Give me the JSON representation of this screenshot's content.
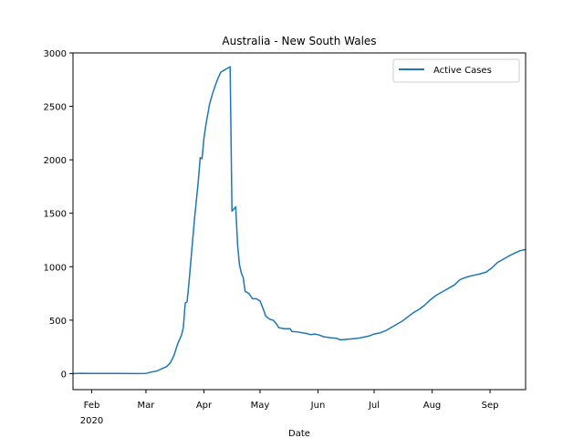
{
  "chart_data": {
    "type": "line",
    "title": "Australia - New South Wales",
    "xlabel": "Date",
    "ylabel": "",
    "xlim": [
      "2020-01-22",
      "2020-09-20"
    ],
    "ylim": [
      -150,
      3000
    ],
    "grid": false,
    "legend_position": "upper right",
    "line_color": "#1f77b4",
    "x_ticks": [
      {
        "date": "2020-02-01",
        "label": "Feb",
        "sublabel": "2020"
      },
      {
        "date": "2020-03-01",
        "label": "Mar",
        "sublabel": ""
      },
      {
        "date": "2020-04-01",
        "label": "Apr",
        "sublabel": ""
      },
      {
        "date": "2020-05-01",
        "label": "May",
        "sublabel": ""
      },
      {
        "date": "2020-06-01",
        "label": "Jun",
        "sublabel": ""
      },
      {
        "date": "2020-07-01",
        "label": "Jul",
        "sublabel": ""
      },
      {
        "date": "2020-08-01",
        "label": "Aug",
        "sublabel": ""
      },
      {
        "date": "2020-09-01",
        "label": "Sep",
        "sublabel": ""
      }
    ],
    "y_ticks": [
      0,
      500,
      1000,
      1500,
      2000,
      2500,
      3000
    ],
    "series": [
      {
        "name": "Active Cases",
        "points": [
          [
            "2020-01-22",
            0
          ],
          [
            "2020-01-26",
            3
          ],
          [
            "2020-02-01",
            2
          ],
          [
            "2020-02-15",
            2
          ],
          [
            "2020-02-25",
            0
          ],
          [
            "2020-03-01",
            2
          ],
          [
            "2020-03-04",
            15
          ],
          [
            "2020-03-07",
            25
          ],
          [
            "2020-03-10",
            50
          ],
          [
            "2020-03-12",
            65
          ],
          [
            "2020-03-14",
            100
          ],
          [
            "2020-03-16",
            170
          ],
          [
            "2020-03-18",
            280
          ],
          [
            "2020-03-20",
            360
          ],
          [
            "2020-03-21",
            430
          ],
          [
            "2020-03-22",
            660
          ],
          [
            "2020-03-23",
            670
          ],
          [
            "2020-03-24",
            850
          ],
          [
            "2020-03-25",
            1050
          ],
          [
            "2020-03-27",
            1450
          ],
          [
            "2020-03-29",
            1800
          ],
          [
            "2020-03-30",
            2020
          ],
          [
            "2020-03-31",
            2010
          ],
          [
            "2020-04-01",
            2200
          ],
          [
            "2020-04-02",
            2320
          ],
          [
            "2020-04-04",
            2520
          ],
          [
            "2020-04-06",
            2640
          ],
          [
            "2020-04-08",
            2740
          ],
          [
            "2020-04-10",
            2820
          ],
          [
            "2020-04-12",
            2840
          ],
          [
            "2020-04-14",
            2860
          ],
          [
            "2020-04-15",
            2870
          ],
          [
            "2020-04-16",
            1520
          ],
          [
            "2020-04-17",
            1540
          ],
          [
            "2020-04-18",
            1560
          ],
          [
            "2020-04-19",
            1200
          ],
          [
            "2020-04-20",
            1020
          ],
          [
            "2020-04-21",
            940
          ],
          [
            "2020-04-22",
            900
          ],
          [
            "2020-04-23",
            770
          ],
          [
            "2020-04-25",
            750
          ],
          [
            "2020-04-27",
            700
          ],
          [
            "2020-04-29",
            700
          ],
          [
            "2020-05-01",
            680
          ],
          [
            "2020-05-03",
            590
          ],
          [
            "2020-05-04",
            540
          ],
          [
            "2020-05-06",
            510
          ],
          [
            "2020-05-08",
            500
          ],
          [
            "2020-05-10",
            460
          ],
          [
            "2020-05-11",
            430
          ],
          [
            "2020-05-14",
            420
          ],
          [
            "2020-05-17",
            420
          ],
          [
            "2020-05-18",
            395
          ],
          [
            "2020-05-21",
            390
          ],
          [
            "2020-05-24",
            380
          ],
          [
            "2020-05-26",
            375
          ],
          [
            "2020-05-28",
            365
          ],
          [
            "2020-05-30",
            370
          ],
          [
            "2020-06-01",
            365
          ],
          [
            "2020-06-04",
            345
          ],
          [
            "2020-06-08",
            335
          ],
          [
            "2020-06-11",
            330
          ],
          [
            "2020-06-13",
            315
          ],
          [
            "2020-06-16",
            320
          ],
          [
            "2020-06-19",
            325
          ],
          [
            "2020-06-22",
            330
          ],
          [
            "2020-06-25",
            340
          ],
          [
            "2020-06-28",
            350
          ],
          [
            "2020-07-01",
            370
          ],
          [
            "2020-07-04",
            380
          ],
          [
            "2020-07-07",
            400
          ],
          [
            "2020-07-10",
            430
          ],
          [
            "2020-07-13",
            460
          ],
          [
            "2020-07-16",
            490
          ],
          [
            "2020-07-19",
            530
          ],
          [
            "2020-07-22",
            570
          ],
          [
            "2020-07-25",
            600
          ],
          [
            "2020-07-28",
            640
          ],
          [
            "2020-07-31",
            690
          ],
          [
            "2020-08-03",
            730
          ],
          [
            "2020-08-06",
            760
          ],
          [
            "2020-08-10",
            800
          ],
          [
            "2020-08-13",
            830
          ],
          [
            "2020-08-16",
            880
          ],
          [
            "2020-08-19",
            900
          ],
          [
            "2020-08-22",
            915
          ],
          [
            "2020-08-26",
            930
          ],
          [
            "2020-08-30",
            950
          ],
          [
            "2020-09-02",
            990
          ],
          [
            "2020-09-05",
            1040
          ],
          [
            "2020-09-08",
            1070
          ],
          [
            "2020-09-11",
            1100
          ],
          [
            "2020-09-14",
            1125
          ],
          [
            "2020-09-17",
            1150
          ],
          [
            "2020-09-20",
            1160
          ]
        ]
      }
    ]
  }
}
